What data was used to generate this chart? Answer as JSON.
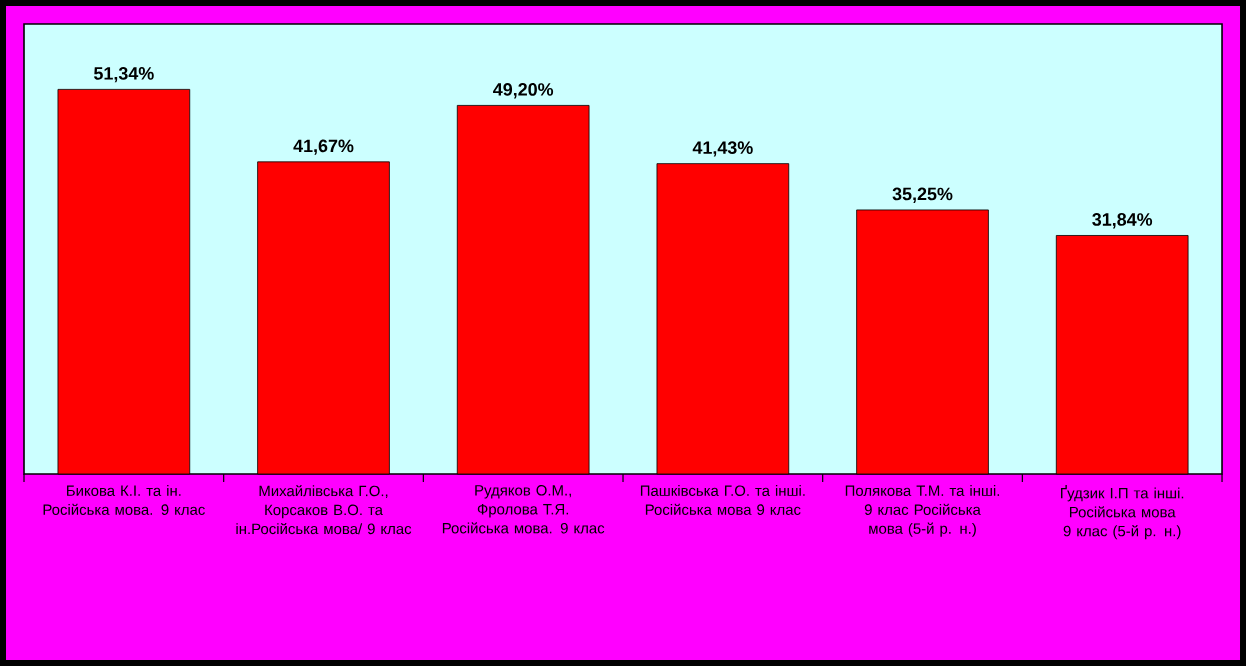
{
  "chart_data": {
    "type": "bar",
    "categories": [
      "Бикова К.І. та ін. Російська мова. 9 клас",
      "Михайлівська Г.О., Корсаков В.О. та ін.Російська мова/ 9 клас",
      "Рудяков О.М., Фролова Т.Я. Російська мова. 9 клас",
      "Пашківська Г.О. та інші. Російська мова 9 клас",
      "Полякова Т.М. та інші. 9 клас Російська мова (5-й р. н.)",
      "Ґудзик І.П та інші. Російська мова 9 клас (5-й р. н.)"
    ],
    "values": [
      51.34,
      41.67,
      49.2,
      41.43,
      35.25,
      31.84
    ],
    "value_labels": [
      "51,34%",
      "41,67%",
      "49,20%",
      "41,43%",
      "35,25%",
      "31,84%"
    ],
    "color": "#ff0000"
  }
}
